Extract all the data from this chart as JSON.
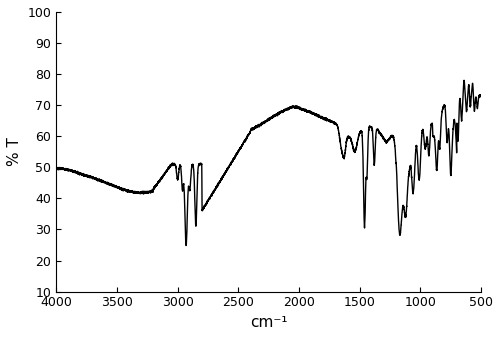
{
  "title": "",
  "xlabel": "cm⁻¹",
  "ylabel": "% T",
  "xlim": [
    4000,
    500
  ],
  "ylim": [
    10,
    100
  ],
  "yticks": [
    10,
    20,
    30,
    40,
    50,
    60,
    70,
    80,
    90,
    100
  ],
  "xticks": [
    4000,
    3500,
    3000,
    2500,
    2000,
    1500,
    1000,
    500
  ],
  "line_color": "#000000",
  "background_color": "#ffffff",
  "linewidth": 1.0
}
